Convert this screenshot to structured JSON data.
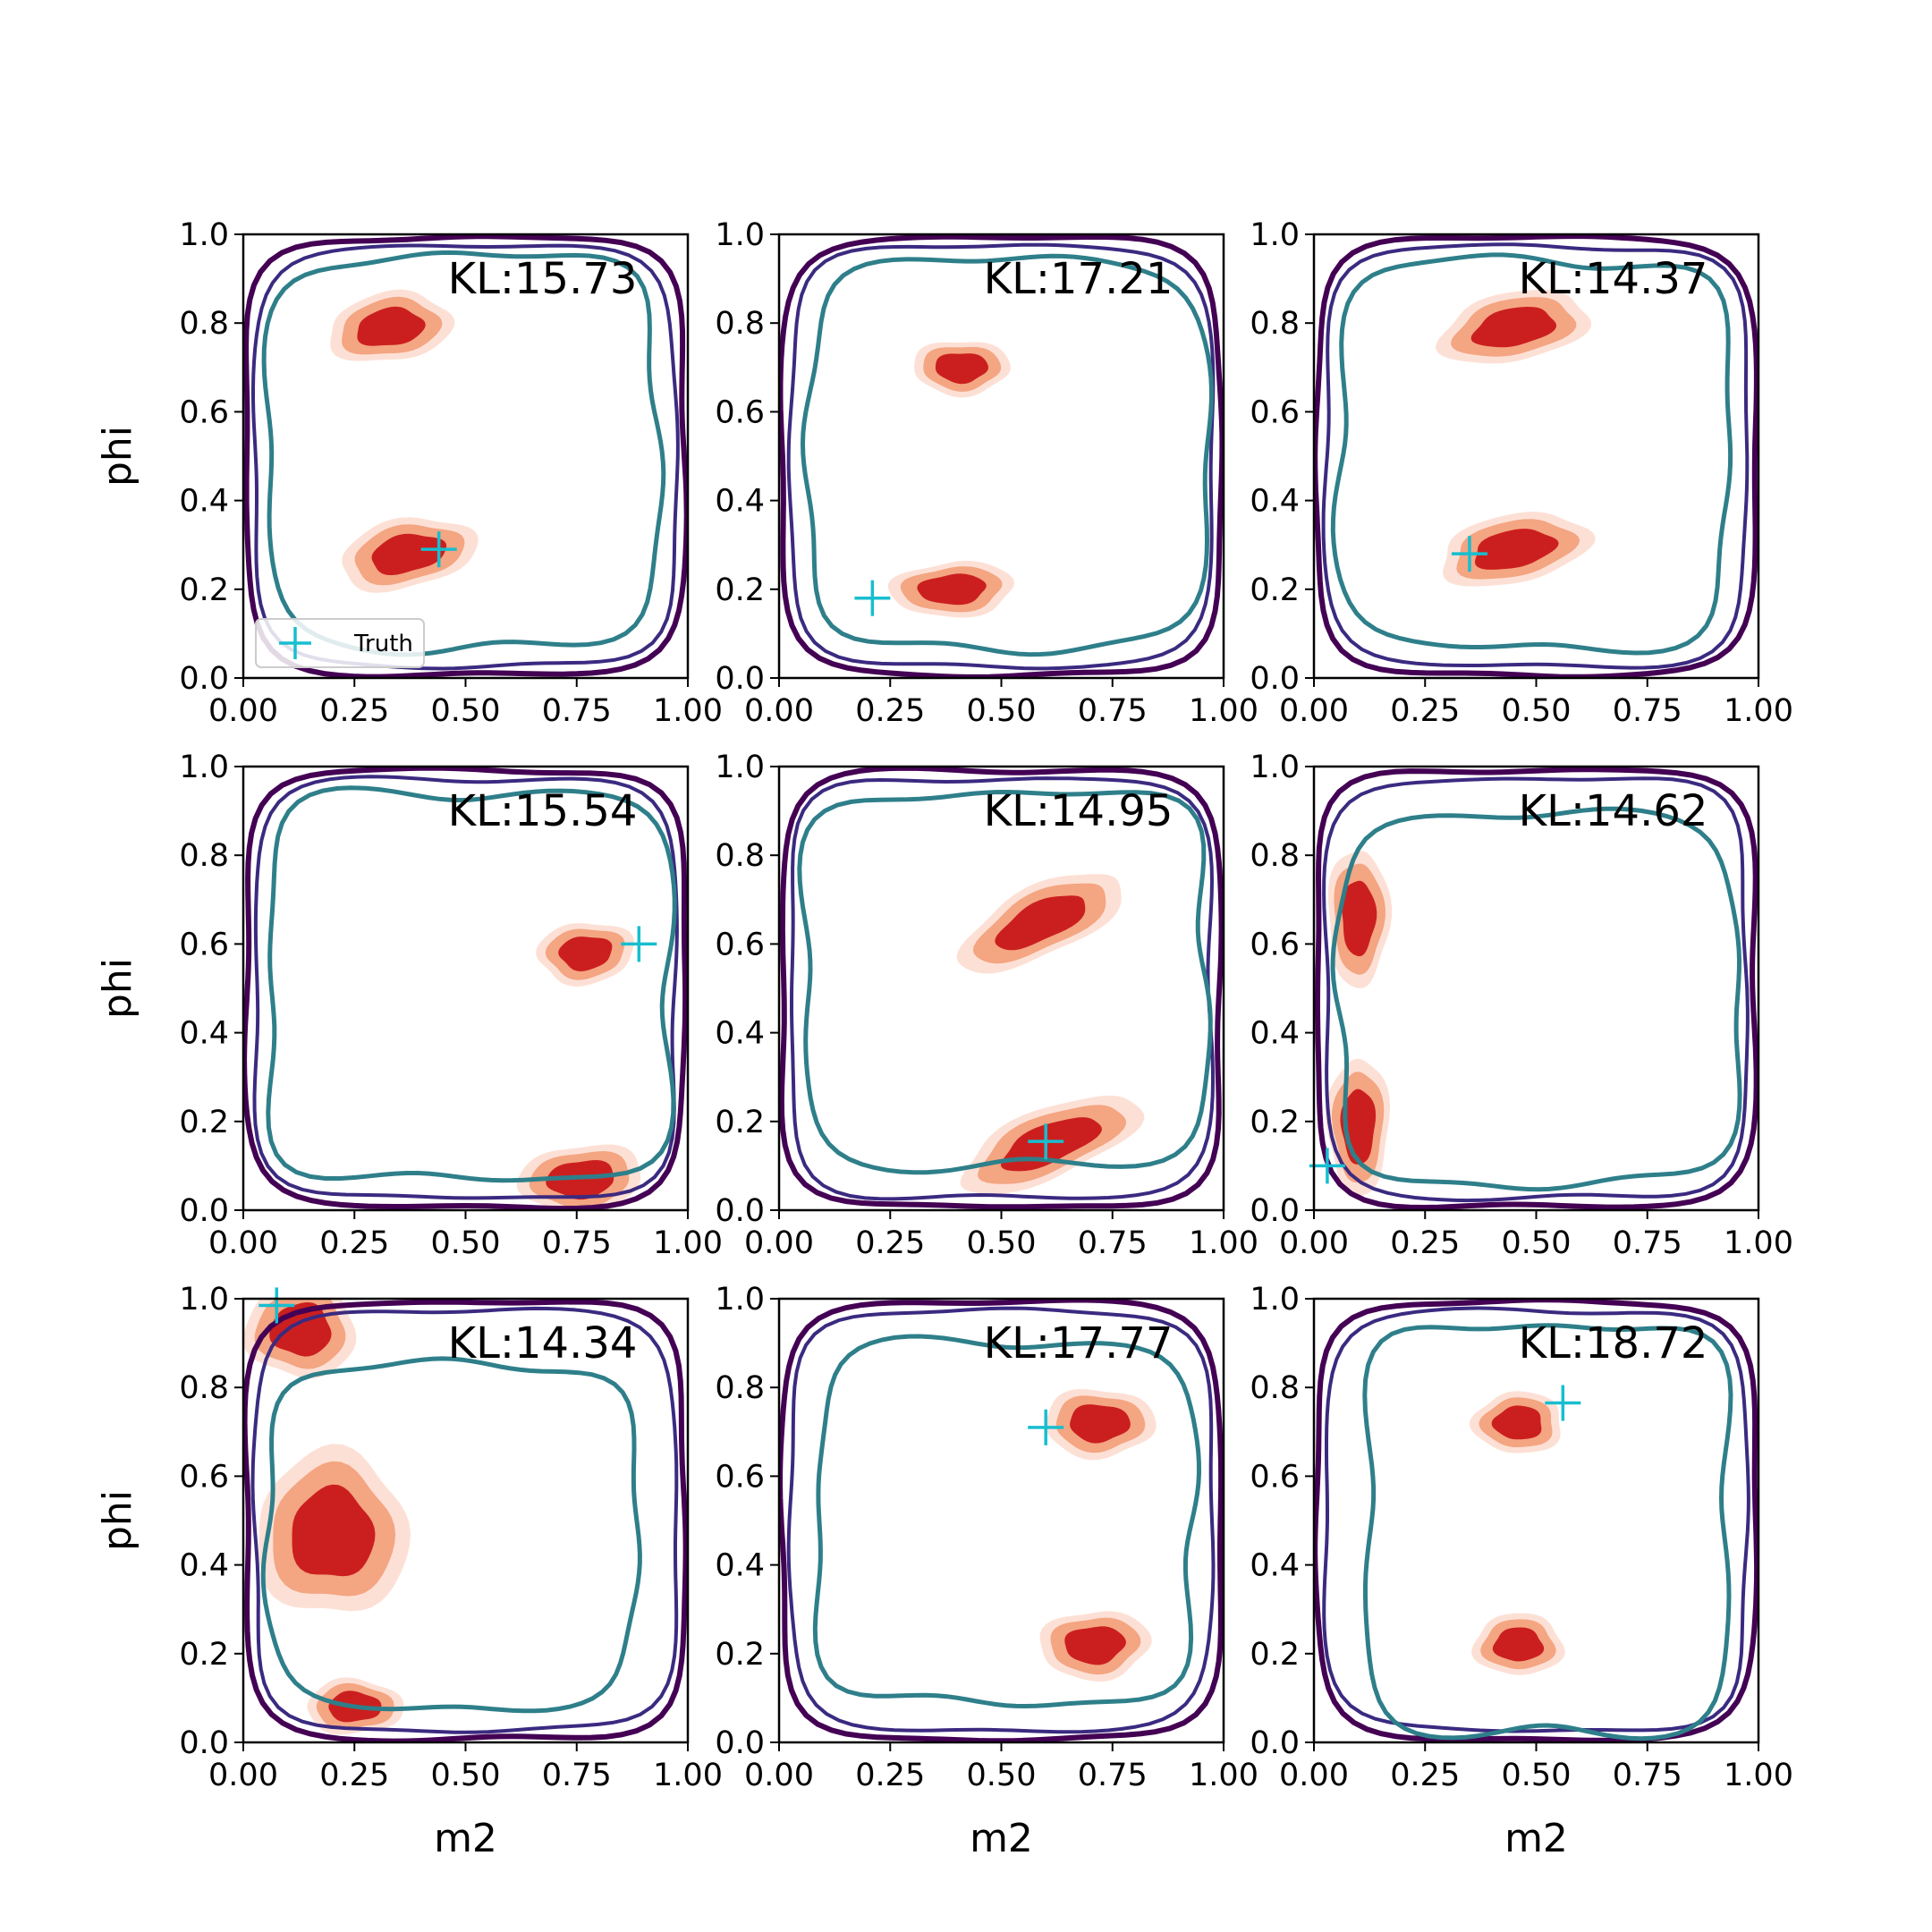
{
  "figure": {
    "colors": {
      "contour_outer": "#440154",
      "contour_mid": "#3b2a80",
      "contour_inner": "#2e7f8a",
      "fill_dark": "#cb1f1f",
      "fill_mid": "#f4a582",
      "fill_light": "#fde0d5",
      "truth_marker": "#17becf"
    }
  },
  "chart_data": [
    {
      "type": "contour",
      "xlabel": "",
      "ylabel": "phi",
      "xlim": [
        0,
        1
      ],
      "ylim": [
        0,
        1
      ],
      "x_ticks": [
        "0.00",
        "0.25",
        "0.50",
        "0.75",
        "1.00"
      ],
      "y_ticks": [
        "0.0",
        "0.2",
        "0.4",
        "0.6",
        "0.8",
        "1.0"
      ],
      "annotation": "KL:15.73",
      "truth": {
        "m2": 0.44,
        "phi": 0.29
      },
      "legend": {
        "entries": [
          "Truth"
        ],
        "placement": "lower-left"
      },
      "density_blobs": [
        {
          "m2": 0.33,
          "phi": 0.79,
          "sm2": 0.09,
          "sphi": 0.05,
          "tilt": 0.15
        },
        {
          "m2": 0.37,
          "phi": 0.28,
          "sm2": 0.1,
          "sphi": 0.05,
          "tilt": 0.2
        }
      ],
      "inner_contour_box": [
        0.06,
        0.07,
        0.93,
        0.95
      ]
    },
    {
      "type": "contour",
      "xlabel": "",
      "ylabel": "",
      "xlim": [
        0,
        1
      ],
      "ylim": [
        0,
        1
      ],
      "x_ticks": [
        "0.00",
        "0.25",
        "0.50",
        "0.75",
        "1.00"
      ],
      "y_ticks": [
        "0.0",
        "0.2",
        "0.4",
        "0.6",
        "0.8",
        "1.0"
      ],
      "annotation": "KL:17.21",
      "truth": {
        "m2": 0.21,
        "phi": 0.18
      },
      "density_blobs": [
        {
          "m2": 0.41,
          "phi": 0.7,
          "sm2": 0.07,
          "sphi": 0.04,
          "tilt": 0.0
        },
        {
          "m2": 0.39,
          "phi": 0.2,
          "sm2": 0.09,
          "sphi": 0.04,
          "tilt": 0.05
        }
      ],
      "inner_contour_box": [
        0.07,
        0.07,
        0.96,
        0.94
      ]
    },
    {
      "type": "contour",
      "xlabel": "",
      "ylabel": "",
      "xlim": [
        0,
        1
      ],
      "ylim": [
        0,
        1
      ],
      "x_ticks": [
        "0.00",
        "0.25",
        "0.50",
        "0.75",
        "1.00"
      ],
      "y_ticks": [
        "0.0",
        "0.2",
        "0.4",
        "0.6",
        "0.8",
        "1.0"
      ],
      "annotation": "KL:14.37",
      "truth": {
        "m2": 0.35,
        "phi": 0.28
      },
      "density_blobs": [
        {
          "m2": 0.45,
          "phi": 0.79,
          "sm2": 0.11,
          "sphi": 0.05,
          "tilt": 0.2
        },
        {
          "m2": 0.45,
          "phi": 0.29,
          "sm2": 0.11,
          "sphi": 0.05,
          "tilt": 0.2
        }
      ],
      "inner_contour_box": [
        0.06,
        0.07,
        0.93,
        0.94
      ]
    },
    {
      "type": "contour",
      "xlabel": "",
      "ylabel": "phi",
      "xlim": [
        0,
        1
      ],
      "ylim": [
        0,
        1
      ],
      "x_ticks": [
        "0.00",
        "0.25",
        "0.50",
        "0.75",
        "1.00"
      ],
      "y_ticks": [
        "0.0",
        "0.2",
        "0.4",
        "0.6",
        "0.8",
        "1.0"
      ],
      "annotation": "KL:15.54",
      "truth": {
        "m2": 0.89,
        "phi": 0.6
      },
      "density_blobs": [
        {
          "m2": 0.77,
          "phi": 0.58,
          "sm2": 0.07,
          "sphi": 0.045,
          "tilt": 0.1
        },
        {
          "m2": 0.76,
          "phi": 0.07,
          "sm2": 0.09,
          "sphi": 0.05,
          "tilt": 0.1
        }
      ],
      "inner_contour_box": [
        0.06,
        0.07,
        0.96,
        0.94
      ]
    },
    {
      "type": "contour",
      "xlabel": "",
      "ylabel": "",
      "xlim": [
        0,
        1
      ],
      "ylim": [
        0,
        1
      ],
      "x_ticks": [
        "0.00",
        "0.25",
        "0.50",
        "0.75",
        "1.00"
      ],
      "y_ticks": [
        "0.0",
        "0.2",
        "0.4",
        "0.6",
        "0.8",
        "1.0"
      ],
      "annotation": "KL:14.95",
      "truth": {
        "m2": 0.6,
        "phi": 0.155
      },
      "density_blobs": [
        {
          "m2": 0.59,
          "phi": 0.65,
          "sm2": 0.13,
          "sphi": 0.05,
          "tilt": 0.45
        },
        {
          "m2": 0.61,
          "phi": 0.15,
          "sm2": 0.14,
          "sphi": 0.05,
          "tilt": 0.4
        }
      ],
      "inner_contour_box": [
        0.06,
        0.1,
        0.96,
        0.94
      ]
    },
    {
      "type": "contour",
      "xlabel": "",
      "ylabel": "",
      "xlim": [
        0,
        1
      ],
      "ylim": [
        0,
        1
      ],
      "x_ticks": [
        "0.00",
        "0.25",
        "0.50",
        "0.75",
        "1.00"
      ],
      "y_ticks": [
        "0.0",
        "0.2",
        "0.4",
        "0.6",
        "0.8",
        "1.0"
      ],
      "annotation": "KL:14.62",
      "truth": {
        "m2": 0.03,
        "phi": 0.1
      },
      "density_blobs": [
        {
          "m2": 0.1,
          "phi": 0.66,
          "sm2": 0.045,
          "sphi": 0.1,
          "tilt": 0.0
        },
        {
          "m2": 0.1,
          "phi": 0.19,
          "sm2": 0.045,
          "sphi": 0.1,
          "tilt": 0.0
        }
      ],
      "inner_contour_box": [
        0.06,
        0.06,
        0.95,
        0.89
      ]
    },
    {
      "type": "contour",
      "xlabel": "m2",
      "ylabel": "phi",
      "xlim": [
        0,
        1
      ],
      "ylim": [
        0,
        1
      ],
      "x_ticks": [
        "0.00",
        "0.25",
        "0.50",
        "0.75",
        "1.00"
      ],
      "y_ticks": [
        "0.0",
        "0.2",
        "0.4",
        "0.6",
        "0.8",
        "1.0"
      ],
      "annotation": "KL:14.34",
      "truth": {
        "m2": 0.075,
        "phi": 0.985
      },
      "density_blobs": [
        {
          "m2": 0.13,
          "phi": 0.93,
          "sm2": 0.08,
          "sphi": 0.07,
          "tilt": 0.0
        },
        {
          "m2": 0.2,
          "phi": 0.47,
          "sm2": 0.11,
          "sphi": 0.12,
          "tilt": 0.0
        },
        {
          "m2": 0.25,
          "phi": 0.08,
          "sm2": 0.07,
          "sphi": 0.04,
          "tilt": 0.0
        }
      ],
      "inner_contour_box": [
        0.06,
        0.08,
        0.88,
        0.85
      ]
    },
    {
      "type": "contour",
      "xlabel": "m2",
      "ylabel": "",
      "xlim": [
        0,
        1
      ],
      "ylim": [
        0,
        1
      ],
      "x_ticks": [
        "0.00",
        "0.25",
        "0.50",
        "0.75",
        "1.00"
      ],
      "y_ticks": [
        "0.0",
        "0.2",
        "0.4",
        "0.6",
        "0.8",
        "1.0"
      ],
      "annotation": "KL:17.77",
      "truth": {
        "m2": 0.6,
        "phi": 0.71
      },
      "density_blobs": [
        {
          "m2": 0.72,
          "phi": 0.72,
          "sm2": 0.08,
          "sphi": 0.05,
          "tilt": 0.0
        },
        {
          "m2": 0.71,
          "phi": 0.22,
          "sm2": 0.08,
          "sphi": 0.05,
          "tilt": 0.05
        }
      ],
      "inner_contour_box": [
        0.09,
        0.09,
        0.93,
        0.9
      ]
    },
    {
      "type": "contour",
      "xlabel": "m2",
      "ylabel": "",
      "xlim": [
        0,
        1
      ],
      "ylim": [
        0,
        1
      ],
      "x_ticks": [
        "0.00",
        "0.25",
        "0.50",
        "0.75",
        "1.00"
      ],
      "y_ticks": [
        "0.0",
        "0.2",
        "0.4",
        "0.6",
        "0.8",
        "1.0"
      ],
      "annotation": "KL:18.72",
      "truth": {
        "m2": 0.56,
        "phi": 0.765
      },
      "density_blobs": [
        {
          "m2": 0.46,
          "phi": 0.72,
          "sm2": 0.065,
          "sphi": 0.045,
          "tilt": 0.0
        },
        {
          "m2": 0.46,
          "phi": 0.22,
          "sm2": 0.065,
          "sphi": 0.045,
          "tilt": 0.0
        }
      ],
      "inner_contour_box": [
        0.12,
        0.02,
        0.93,
        0.94
      ]
    }
  ]
}
